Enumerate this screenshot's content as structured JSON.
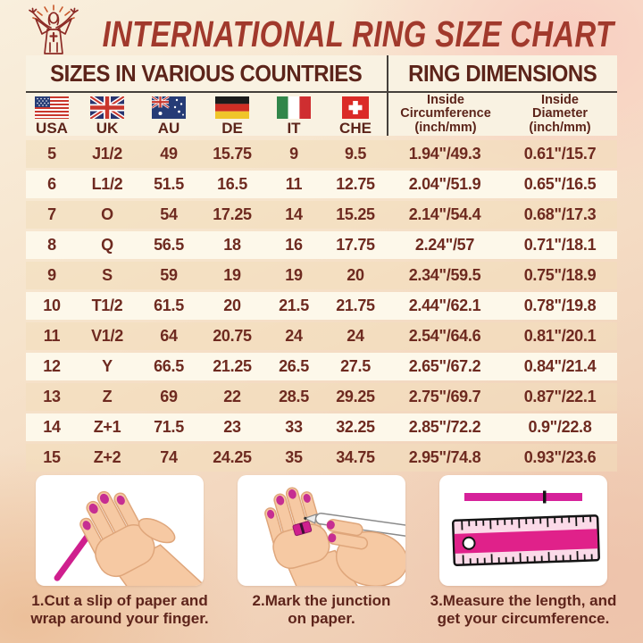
{
  "header": {
    "title": "INTERNATIONAL RING SIZE CHART",
    "logo": "praising-figure-emblem"
  },
  "table": {
    "section_left": "SIZES IN VARIOUS COUNTRIES",
    "section_right": "RING DIMENSIONS",
    "countries": [
      {
        "code": "USA",
        "flag": "usa-flag"
      },
      {
        "code": "UK",
        "flag": "uk-flag"
      },
      {
        "code": "AU",
        "flag": "australia-flag"
      },
      {
        "code": "DE",
        "flag": "germany-flag"
      },
      {
        "code": "IT",
        "flag": "italy-flag"
      },
      {
        "code": "CHE",
        "flag": "switzerland-flag"
      }
    ],
    "dim_headers": [
      {
        "line1": "Inside",
        "line2": "Circumference",
        "line3": "(inch/mm)"
      },
      {
        "line1": "Inside",
        "line2": "Diameter",
        "line3": "(inch/mm)"
      }
    ]
  },
  "chart_data": {
    "type": "table",
    "title": "INTERNATIONAL RING SIZE CHART",
    "columns": [
      "USA",
      "UK",
      "AU",
      "DE",
      "IT",
      "CHE",
      "Inside Circumference (inch/mm)",
      "Inside Diameter (inch/mm)"
    ],
    "rows": [
      [
        "5",
        "J1/2",
        "49",
        "15.75",
        "9",
        "9.5",
        "1.94\"/49.3",
        "0.61\"/15.7"
      ],
      [
        "6",
        "L1/2",
        "51.5",
        "16.5",
        "11",
        "12.75",
        "2.04\"/51.9",
        "0.65\"/16.5"
      ],
      [
        "7",
        "O",
        "54",
        "17.25",
        "14",
        "15.25",
        "2.14\"/54.4",
        "0.68\"/17.3"
      ],
      [
        "8",
        "Q",
        "56.5",
        "18",
        "16",
        "17.75",
        "2.24\"/57",
        "0.71\"/18.1"
      ],
      [
        "9",
        "S",
        "59",
        "19",
        "19",
        "20",
        "2.34\"/59.5",
        "0.75\"/18.9"
      ],
      [
        "10",
        "T1/2",
        "61.5",
        "20",
        "21.5",
        "21.75",
        "2.44\"/62.1",
        "0.78\"/19.8"
      ],
      [
        "11",
        "V1/2",
        "64",
        "20.75",
        "24",
        "24",
        "2.54\"/64.6",
        "0.81\"/20.1"
      ],
      [
        "12",
        "Y",
        "66.5",
        "21.25",
        "26.5",
        "27.5",
        "2.65\"/67.2",
        "0.84\"/21.4"
      ],
      [
        "13",
        "Z",
        "69",
        "22",
        "28.5",
        "29.25",
        "2.75\"/69.7",
        "0.87\"/22.1"
      ],
      [
        "14",
        "Z+1",
        "71.5",
        "23",
        "33",
        "32.25",
        "2.85\"/72.2",
        "0.9\"/22.8"
      ],
      [
        "15",
        "Z+2",
        "74",
        "24.25",
        "35",
        "34.75",
        "2.95\"/74.8",
        "0.93\"/23.6"
      ]
    ]
  },
  "steps": [
    {
      "illustration": "hand-with-paper-strip",
      "lines": [
        "1.Cut a slip of paper and",
        "wrap around your finger."
      ]
    },
    {
      "illustration": "hands-marking-with-pen",
      "lines": [
        "2.Mark the junction",
        "on paper."
      ]
    },
    {
      "illustration": "strip-and-ruler",
      "lines": [
        "3.Measure the length, and",
        "get your circumference."
      ]
    }
  ],
  "colors": {
    "title_red": "#a1392c",
    "text_maroon": "#6e2a20",
    "header_brown": "#5c241a",
    "cream_panel": "#f9f2e2",
    "accent_magenta": "#d0218f",
    "skin": "#f6c9a3"
  }
}
